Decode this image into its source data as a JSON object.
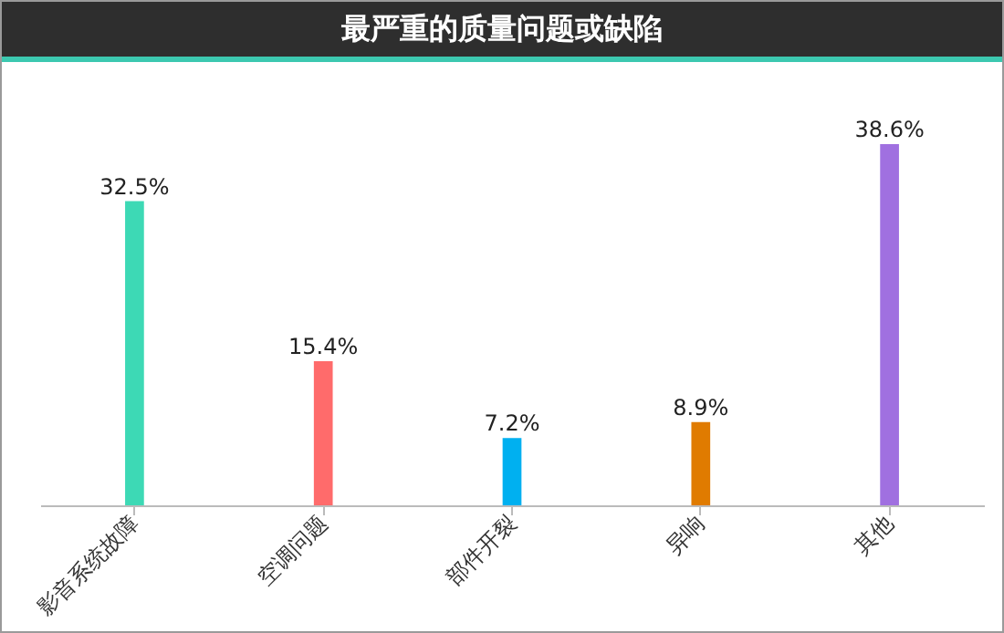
{
  "chart_data": {
    "type": "bar",
    "title": "最严重的质量问题或缺陷",
    "categories": [
      "影音系统故障",
      "空调问题",
      "部件开裂",
      "异响",
      "其他"
    ],
    "values": [
      32.5,
      15.4,
      7.2,
      8.9,
      38.6
    ],
    "colors": [
      "#3dd9b5",
      "#ff6b6b",
      "#00b0f0",
      "#e07b00",
      "#a070e0"
    ],
    "value_labels": [
      "32.5%",
      "15.4%",
      "7.2%",
      "8.9%",
      "38.6%"
    ],
    "grid": false,
    "legend": false
  }
}
